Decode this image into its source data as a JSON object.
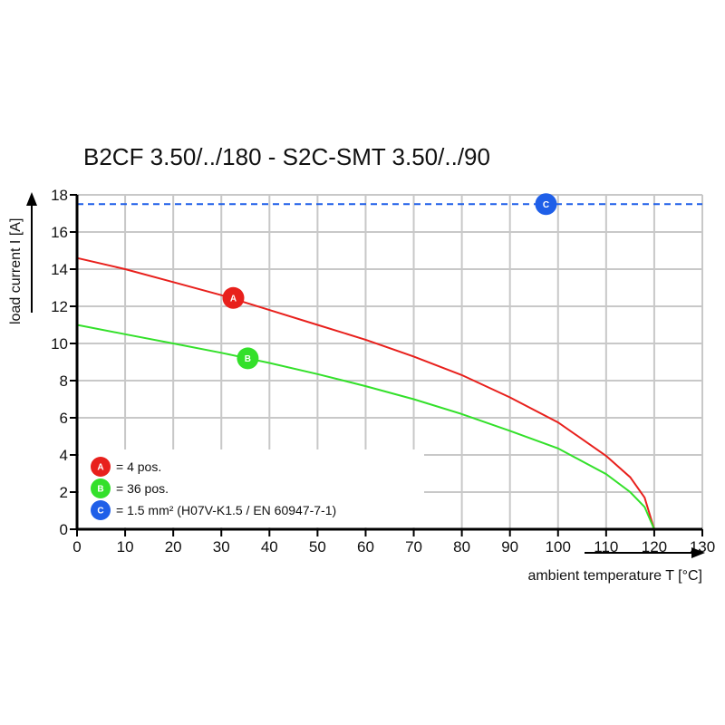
{
  "chart_data": {
    "type": "line",
    "title": "B2CF 3.50/../180 - S2C-SMT 3.50/../90",
    "xlabel": "ambient temperature T [°C]",
    "ylabel": "load current I [A]",
    "xlim": [
      0,
      130
    ],
    "ylim": [
      0,
      18
    ],
    "xticks": [
      "0",
      "10",
      "20",
      "30",
      "40",
      "50",
      "60",
      "70",
      "80",
      "90",
      "100",
      "110",
      "120",
      "130"
    ],
    "yticks": [
      "0",
      "2",
      "4",
      "6",
      "8",
      "10",
      "12",
      "14",
      "16",
      "18"
    ],
    "grid": true,
    "legend_position": "bottom-left",
    "series": [
      {
        "marker": "A",
        "name": "= 4 pos.",
        "color": "#e8201c",
        "marker_at": [
          32.5,
          12.45
        ],
        "x": [
          0,
          10,
          20,
          30,
          40,
          50,
          60,
          70,
          80,
          90,
          100,
          110,
          115,
          118,
          120
        ],
        "y": [
          14.6,
          14.0,
          13.3,
          12.6,
          11.8,
          11.0,
          10.2,
          9.3,
          8.3,
          7.1,
          5.75,
          3.95,
          2.8,
          1.7,
          0
        ]
      },
      {
        "marker": "B",
        "name": "= 36 pos.",
        "color": "#33e02a",
        "marker_at": [
          35.5,
          9.2
        ],
        "x": [
          0,
          10,
          20,
          30,
          40,
          50,
          60,
          70,
          80,
          90,
          100,
          110,
          115,
          118,
          120
        ],
        "y": [
          11.0,
          10.5,
          10.0,
          9.5,
          8.95,
          8.35,
          7.7,
          7.0,
          6.2,
          5.3,
          4.35,
          2.97,
          2.0,
          1.2,
          0
        ]
      },
      {
        "marker": "C",
        "name": "= 1.5 mm² (H07V-K1.5 / EN 60947-7-1)",
        "color": "#1f5fe8",
        "style": "dashed",
        "marker_at": [
          97.5,
          17.5
        ],
        "x": [
          0,
          130
        ],
        "y": [
          17.5,
          17.5
        ]
      }
    ]
  }
}
